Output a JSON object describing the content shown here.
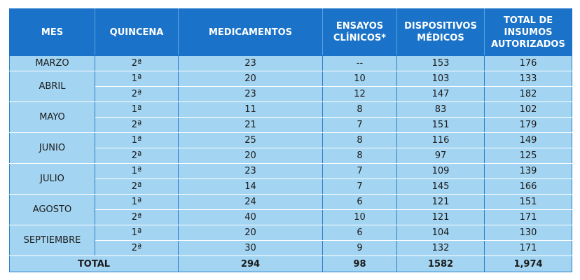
{
  "headers": [
    "MES",
    "QUINCENA",
    "MEDICAMENTOS",
    "ENSAYOS\nCLÍNICOS*",
    "DISPOSITIVOS\nMÉDICOS",
    "TOTAL DE\nINSUMOS\nAUTORIZADOS"
  ],
  "rows": [
    {
      "mes": "MARZO",
      "quincena": "2ª",
      "medicamentos": "23",
      "ensayos": "--",
      "dispositivos": "153",
      "total": "176"
    },
    {
      "mes": "ABRIL",
      "quincena": "1ª",
      "medicamentos": "20",
      "ensayos": "10",
      "dispositivos": "103",
      "total": "133"
    },
    {
      "mes": "ABRIL",
      "quincena": "2ª",
      "medicamentos": "23",
      "ensayos": "12",
      "dispositivos": "147",
      "total": "182"
    },
    {
      "mes": "MAYO",
      "quincena": "1ª",
      "medicamentos": "11",
      "ensayos": "8",
      "dispositivos": "83",
      "total": "102"
    },
    {
      "mes": "MAYO",
      "quincena": "2ª",
      "medicamentos": "21",
      "ensayos": "7",
      "dispositivos": "151",
      "total": "179"
    },
    {
      "mes": "JUNIO",
      "quincena": "1ª",
      "medicamentos": "25",
      "ensayos": "8",
      "dispositivos": "116",
      "total": "149"
    },
    {
      "mes": "JUNIO",
      "quincena": "2ª",
      "medicamentos": "20",
      "ensayos": "8",
      "dispositivos": "97",
      "total": "125"
    },
    {
      "mes": "JULIO",
      "quincena": "1ª",
      "medicamentos": "23",
      "ensayos": "7",
      "dispositivos": "109",
      "total": "139"
    },
    {
      "mes": "JULIO",
      "quincena": "2ª",
      "medicamentos": "14",
      "ensayos": "7",
      "dispositivos": "145",
      "total": "166"
    },
    {
      "mes": "AGOSTO",
      "quincena": "1ª",
      "medicamentos": "24",
      "ensayos": "6",
      "dispositivos": "121",
      "total": "151"
    },
    {
      "mes": "AGOSTO",
      "quincena": "2ª",
      "medicamentos": "40",
      "ensayos": "10",
      "dispositivos": "121",
      "total": "171"
    },
    {
      "mes": "SEPTIEMBRE",
      "quincena": "1ª",
      "medicamentos": "20",
      "ensayos": "6",
      "dispositivos": "104",
      "total": "130"
    },
    {
      "mes": "SEPTIEMBRE",
      "quincena": "2ª",
      "medicamentos": "30",
      "ensayos": "9",
      "dispositivos": "132",
      "total": "171"
    }
  ],
  "totals": {
    "label": "TOTAL",
    "medicamentos": "294",
    "ensayos": "98",
    "dispositivos": "1582",
    "total": "1,974"
  }
}
